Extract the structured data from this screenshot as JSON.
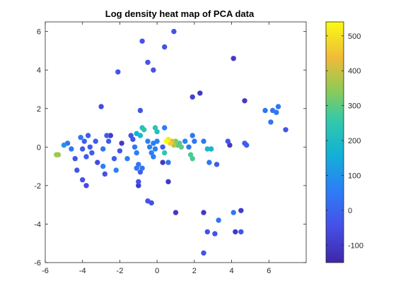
{
  "chart_data": {
    "type": "scatter",
    "title": "Log density heat map of PCA data",
    "xlabel": "",
    "ylabel": "",
    "xlim": [
      -6,
      8
    ],
    "ylim": [
      -6,
      6.5
    ],
    "xticks": [
      -6,
      -4,
      -2,
      0,
      2,
      4,
      6
    ],
    "yticks": [
      -6,
      -4,
      -2,
      0,
      2,
      4,
      6
    ],
    "grid": false,
    "colorbar": {
      "range": [
        -150,
        540
      ],
      "ticks": [
        -100,
        0,
        100,
        200,
        300,
        400,
        500
      ],
      "colormap": "parula"
    },
    "points": [
      {
        "x": -0.8,
        "y": 5.5,
        "c": -40
      },
      {
        "x": 0.9,
        "y": 6.0,
        "c": -40
      },
      {
        "x": 0.4,
        "y": 5.2,
        "c": -40
      },
      {
        "x": -0.5,
        "y": 4.4,
        "c": -40
      },
      {
        "x": -0.2,
        "y": 4.0,
        "c": -40
      },
      {
        "x": -2.1,
        "y": 3.9,
        "c": -40
      },
      {
        "x": 4.1,
        "y": 4.6,
        "c": -100
      },
      {
        "x": 1.9,
        "y": 2.6,
        "c": -80
      },
      {
        "x": 2.3,
        "y": 2.8,
        "c": -100
      },
      {
        "x": 4.7,
        "y": 2.4,
        "c": -100
      },
      {
        "x": -3.0,
        "y": 2.1,
        "c": -60
      },
      {
        "x": -0.9,
        "y": 1.9,
        "c": -40
      },
      {
        "x": 5.8,
        "y": 1.9,
        "c": 40
      },
      {
        "x": 6.2,
        "y": 1.9,
        "c": 40
      },
      {
        "x": 6.4,
        "y": 1.8,
        "c": 40
      },
      {
        "x": 6.5,
        "y": 2.1,
        "c": 40
      },
      {
        "x": 6.1,
        "y": 1.3,
        "c": 40
      },
      {
        "x": 6.9,
        "y": 0.9,
        "c": -40
      },
      {
        "x": -5.4,
        "y": -0.4,
        "c": 360
      },
      {
        "x": -5.3,
        "y": -0.4,
        "c": 360
      },
      {
        "x": -5.0,
        "y": 0.1,
        "c": 100
      },
      {
        "x": -4.8,
        "y": 0.2,
        "c": 40
      },
      {
        "x": -4.6,
        "y": -0.1,
        "c": 40
      },
      {
        "x": -4.4,
        "y": -0.6,
        "c": -40
      },
      {
        "x": -4.3,
        "y": -1.2,
        "c": -40
      },
      {
        "x": -4.0,
        "y": -1.7,
        "c": -40
      },
      {
        "x": -3.8,
        "y": -2.0,
        "c": -60
      },
      {
        "x": -4.1,
        "y": 0.5,
        "c": 40
      },
      {
        "x": -3.9,
        "y": 0.3,
        "c": -10
      },
      {
        "x": -3.7,
        "y": 0.6,
        "c": -20
      },
      {
        "x": -3.6,
        "y": 0.0,
        "c": -20
      },
      {
        "x": -3.5,
        "y": -0.3,
        "c": -20
      },
      {
        "x": -3.3,
        "y": 0.3,
        "c": -20
      },
      {
        "x": -4.0,
        "y": -0.1,
        "c": -20
      },
      {
        "x": -3.8,
        "y": -0.5,
        "c": -20
      },
      {
        "x": -3.2,
        "y": -0.8,
        "c": -60
      },
      {
        "x": -2.9,
        "y": -1.0,
        "c": 60
      },
      {
        "x": -2.8,
        "y": -1.4,
        "c": -40
      },
      {
        "x": -2.7,
        "y": 0.6,
        "c": -20
      },
      {
        "x": -2.6,
        "y": 0.3,
        "c": -20
      },
      {
        "x": -2.5,
        "y": 0.6,
        "c": -100
      },
      {
        "x": -2.9,
        "y": -0.1,
        "c": 40
      },
      {
        "x": -2.3,
        "y": -0.6,
        "c": -20
      },
      {
        "x": -2.2,
        "y": -1.2,
        "c": 60
      },
      {
        "x": -2.0,
        "y": -0.2,
        "c": -40
      },
      {
        "x": -1.9,
        "y": 0.2,
        "c": -100
      },
      {
        "x": -1.6,
        "y": -0.6,
        "c": 60
      },
      {
        "x": -1.4,
        "y": 0.6,
        "c": -40
      },
      {
        "x": -1.3,
        "y": 0.4,
        "c": -40
      },
      {
        "x": -1.1,
        "y": 0.7,
        "c": 160
      },
      {
        "x": -0.9,
        "y": 0.6,
        "c": 180
      },
      {
        "x": -0.8,
        "y": 1.0,
        "c": 220
      },
      {
        "x": -0.7,
        "y": 0.9,
        "c": 240
      },
      {
        "x": -1.2,
        "y": 0.0,
        "c": 40
      },
      {
        "x": -1.1,
        "y": -0.3,
        "c": 60
      },
      {
        "x": -1.0,
        "y": -0.9,
        "c": 40
      },
      {
        "x": -1.1,
        "y": -1.1,
        "c": 40
      },
      {
        "x": -0.9,
        "y": -1.3,
        "c": -20
      },
      {
        "x": -0.8,
        "y": -1.1,
        "c": 40
      },
      {
        "x": -1.0,
        "y": -1.8,
        "c": -40
      },
      {
        "x": -1.0,
        "y": -2.0,
        "c": -100
      },
      {
        "x": -0.5,
        "y": 0.3,
        "c": 60
      },
      {
        "x": -0.4,
        "y": 0.0,
        "c": 60
      },
      {
        "x": -0.3,
        "y": -0.3,
        "c": 60
      },
      {
        "x": -0.2,
        "y": 0.2,
        "c": 60
      },
      {
        "x": -0.1,
        "y": 1.0,
        "c": 230
      },
      {
        "x": 0.0,
        "y": 0.8,
        "c": 220
      },
      {
        "x": 0.0,
        "y": 0.3,
        "c": 60
      },
      {
        "x": -0.2,
        "y": -0.5,
        "c": 60
      },
      {
        "x": -0.1,
        "y": -0.1,
        "c": 60
      },
      {
        "x": 0.4,
        "y": 1.0,
        "c": 60
      },
      {
        "x": 0.3,
        "y": 0.0,
        "c": -20
      },
      {
        "x": 0.3,
        "y": -0.8,
        "c": -100
      },
      {
        "x": 0.4,
        "y": -0.3,
        "c": 250
      },
      {
        "x": 0.5,
        "y": 0.3,
        "c": 540
      },
      {
        "x": 0.6,
        "y": 0.4,
        "c": 510
      },
      {
        "x": 0.7,
        "y": 0.2,
        "c": 470
      },
      {
        "x": 0.8,
        "y": 0.3,
        "c": 420
      },
      {
        "x": 0.9,
        "y": 0.1,
        "c": 380
      },
      {
        "x": 1.0,
        "y": 0.3,
        "c": 330
      },
      {
        "x": 1.1,
        "y": 0.1,
        "c": 300
      },
      {
        "x": 1.2,
        "y": 0.2,
        "c": 280
      },
      {
        "x": 1.3,
        "y": 0.0,
        "c": 300
      },
      {
        "x": 0.6,
        "y": -0.8,
        "c": 40
      },
      {
        "x": 0.6,
        "y": -1.8,
        "c": -100
      },
      {
        "x": 1.5,
        "y": 0.3,
        "c": 60
      },
      {
        "x": 1.7,
        "y": 0.0,
        "c": 40
      },
      {
        "x": 1.9,
        "y": 0.6,
        "c": 40
      },
      {
        "x": 2.0,
        "y": 0.3,
        "c": 40
      },
      {
        "x": 1.8,
        "y": -0.4,
        "c": 280
      },
      {
        "x": 1.9,
        "y": -0.6,
        "c": 280
      },
      {
        "x": 2.5,
        "y": 0.3,
        "c": 40
      },
      {
        "x": 2.7,
        "y": -0.1,
        "c": 180
      },
      {
        "x": 2.9,
        "y": -0.1,
        "c": 180
      },
      {
        "x": 2.8,
        "y": -0.8,
        "c": 40
      },
      {
        "x": 3.2,
        "y": -0.9,
        "c": -20
      },
      {
        "x": 3.8,
        "y": 0.3,
        "c": -40
      },
      {
        "x": 3.9,
        "y": 0.1,
        "c": -100
      },
      {
        "x": 4.7,
        "y": 0.2,
        "c": -20
      },
      {
        "x": 4.8,
        "y": 0.1,
        "c": -20
      },
      {
        "x": -0.5,
        "y": -2.8,
        "c": -40
      },
      {
        "x": -0.3,
        "y": -2.9,
        "c": -40
      },
      {
        "x": 1.0,
        "y": -3.4,
        "c": -100
      },
      {
        "x": 2.5,
        "y": -3.4,
        "c": -100
      },
      {
        "x": 3.3,
        "y": -3.8,
        "c": 40
      },
      {
        "x": 2.7,
        "y": -4.4,
        "c": -40
      },
      {
        "x": 3.1,
        "y": -4.5,
        "c": -40
      },
      {
        "x": 4.1,
        "y": -3.4,
        "c": 40
      },
      {
        "x": 4.5,
        "y": -3.3,
        "c": -100
      },
      {
        "x": 4.2,
        "y": -4.4,
        "c": -100
      },
      {
        "x": 4.5,
        "y": -4.4,
        "c": -40
      },
      {
        "x": 2.5,
        "y": -5.5,
        "c": -40
      }
    ]
  }
}
